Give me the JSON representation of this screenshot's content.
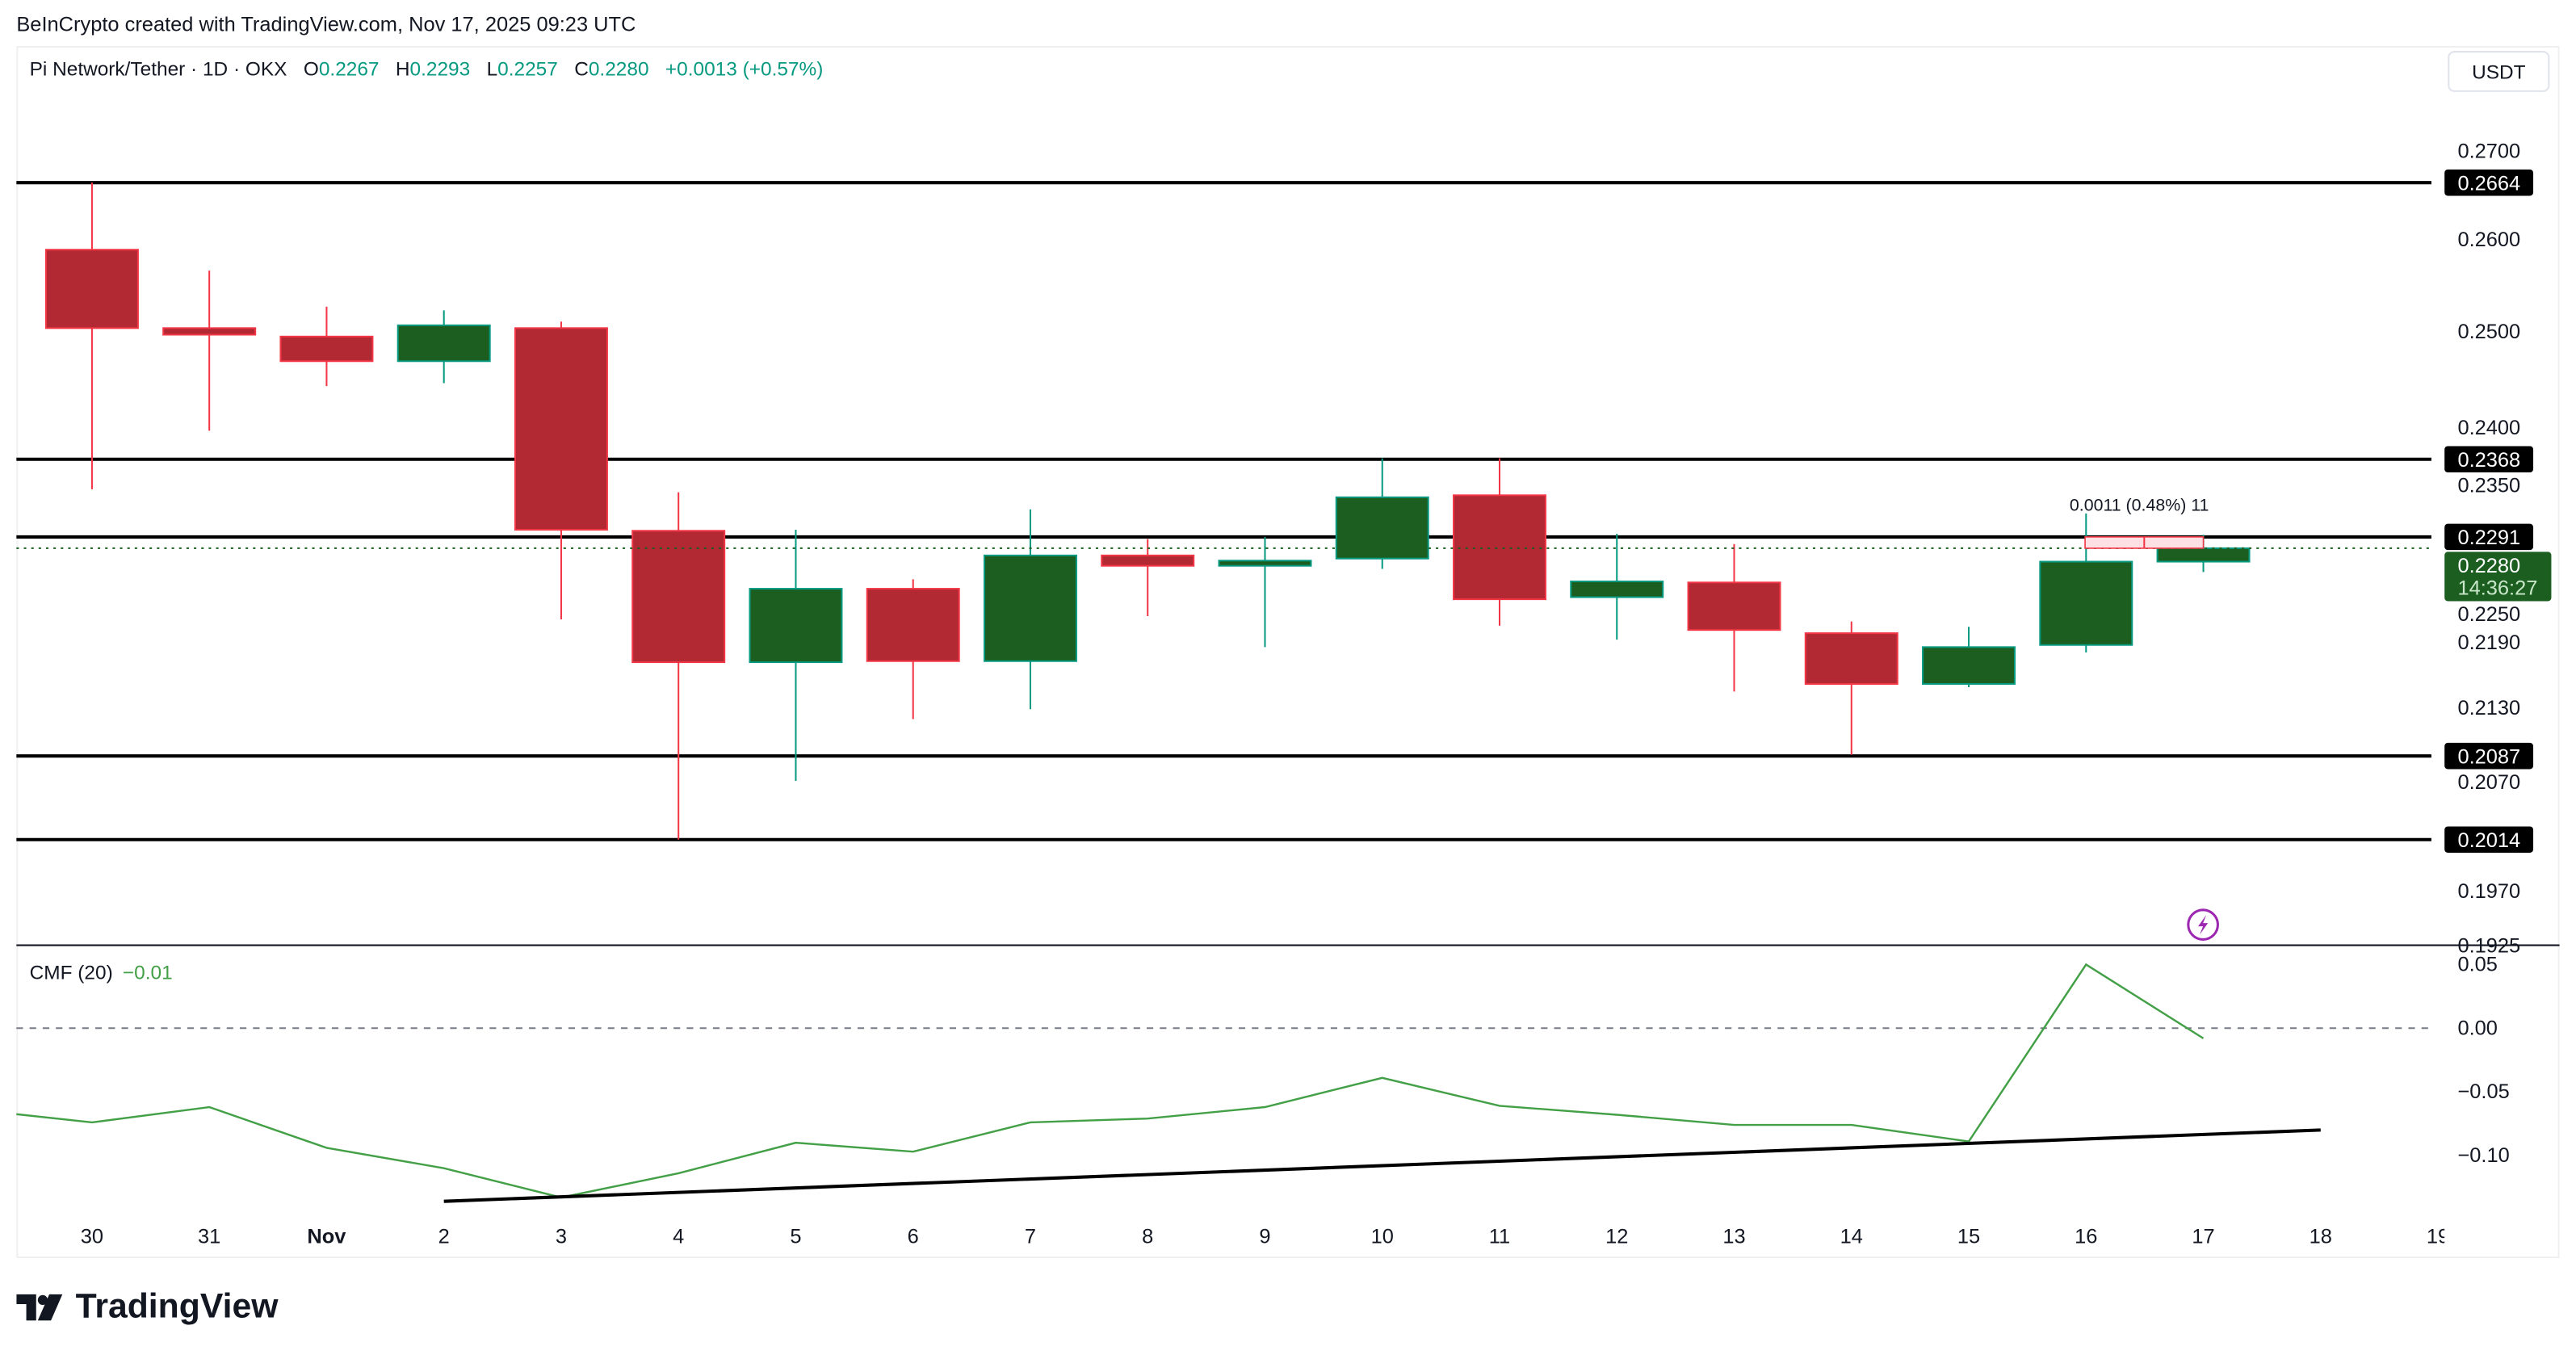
{
  "credit": "BeInCrypto created with TradingView.com, Nov 17, 2025 09:23 UTC",
  "legend": {
    "symbol": "Pi Network/Tether · 1D · OKX",
    "o_label": "O",
    "o": "0.2267",
    "h_label": "H",
    "h": "0.2293",
    "l_label": "L",
    "l": "0.2257",
    "c_label": "C",
    "c": "0.2280",
    "change": "+0.0013 (+0.57%)"
  },
  "currency_button": "USDT",
  "cmf": {
    "label": "CMF (20)",
    "value": "−0.01"
  },
  "brand": "TradingView",
  "colors": {
    "up": "#1b5e20",
    "up_border": "#089981",
    "down": "#b22833",
    "down_border": "#f23645",
    "cmf_line": "#43a047",
    "measure_fill": "#fde0e3"
  },
  "icons": {
    "alert": "lightning-icon"
  },
  "chart_data": [
    {
      "type": "candlestick",
      "y_scale": "log",
      "dates": [
        "30",
        "31",
        "Nov 1",
        "2",
        "3",
        "4",
        "5",
        "6",
        "7",
        "8",
        "9",
        "10",
        "11",
        "12",
        "13",
        "14",
        "15",
        "16",
        "17"
      ],
      "ohlc": [
        [
          0.2589,
          0.2664,
          0.2338,
          0.2504
        ],
        [
          0.2504,
          0.2566,
          0.2397,
          0.2497
        ],
        [
          0.2495,
          0.2527,
          0.2443,
          0.2469
        ],
        [
          0.2469,
          0.2523,
          0.2446,
          0.2507
        ],
        [
          0.2504,
          0.2511,
          0.2212,
          0.2298
        ],
        [
          0.2297,
          0.2335,
          0.2014,
          0.2172
        ],
        [
          0.2172,
          0.2298,
          0.2065,
          0.2241
        ],
        [
          0.2241,
          0.225,
          0.212,
          0.2173
        ],
        [
          0.2173,
          0.2318,
          0.2129,
          0.2273
        ],
        [
          0.2273,
          0.2289,
          0.2215,
          0.2263
        ],
        [
          0.2263,
          0.2291,
          0.2186,
          0.2268
        ],
        [
          0.227,
          0.2369,
          0.226,
          0.233
        ],
        [
          0.2332,
          0.2369,
          0.2206,
          0.2231
        ],
        [
          0.2233,
          0.2294,
          0.2193,
          0.2248
        ],
        [
          0.2247,
          0.2284,
          0.2145,
          0.2202
        ],
        [
          0.2199,
          0.221,
          0.2088,
          0.2152
        ],
        [
          0.2152,
          0.2205,
          0.2149,
          0.2186
        ],
        [
          0.2188,
          0.2314,
          0.2181,
          0.2267
        ],
        [
          0.2267,
          0.2293,
          0.2257,
          0.228
        ]
      ],
      "x_tick_labels": [
        "30",
        "31",
        "Nov",
        "2",
        "3",
        "4",
        "5",
        "6",
        "7",
        "8",
        "9",
        "10",
        "11",
        "12",
        "13",
        "14",
        "15",
        "16",
        "17",
        "18",
        "19"
      ],
      "y_tick_labels": [
        "0.2700",
        "0.2600",
        "0.2500",
        "0.2400",
        "0.2350",
        "0.2250",
        "0.2190",
        "0.2130",
        "0.2070",
        "0.1970",
        "0.1925"
      ],
      "horizontal_levels": [
        "0.2664",
        "0.2368",
        "0.2291",
        "0.2087",
        "0.2014"
      ],
      "last_price": {
        "value": "0.2280",
        "countdown": "14:36:27"
      },
      "measurement": {
        "from": 0.228,
        "to": 0.2291,
        "label": "0.0011 (0.48%) 11"
      }
    },
    {
      "type": "line",
      "name": "CMF (20)",
      "dates": [
        "29",
        "30",
        "31",
        "Nov 1",
        "2",
        "3",
        "4",
        "5",
        "6",
        "7",
        "8",
        "9",
        "10",
        "11",
        "12",
        "13",
        "14",
        "15",
        "16",
        "17"
      ],
      "values": [
        -0.064,
        -0.074,
        -0.062,
        -0.094,
        -0.11,
        -0.133,
        -0.114,
        -0.09,
        -0.097,
        -0.074,
        -0.071,
        -0.062,
        -0.039,
        -0.061,
        -0.068,
        -0.076,
        -0.076,
        -0.089,
        0.05,
        -0.008
      ],
      "y_tick_labels": [
        "0.05",
        "0.00",
        "−0.05",
        "−0.10"
      ],
      "zero_line": "dashed",
      "trendline": {
        "from": [
          "2",
          -0.136
        ],
        "to": [
          "18",
          -0.08
        ]
      }
    }
  ]
}
